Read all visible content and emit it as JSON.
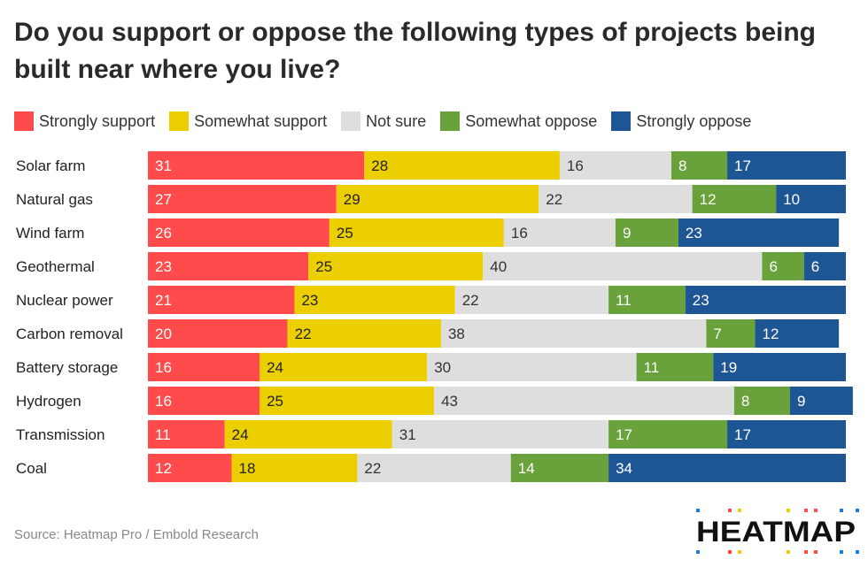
{
  "chart_data": {
    "type": "bar",
    "orientation": "horizontal",
    "stacked": true,
    "title": "Do you support or oppose the following types of projects being built near where you live?",
    "categories": [
      "Solar farm",
      "Natural gas",
      "Wind farm",
      "Geothermal",
      "Nuclear power",
      "Carbon removal",
      "Battery storage",
      "Hydrogen",
      "Transmission",
      "Coal"
    ],
    "series": [
      {
        "name": "Strongly support",
        "color": "#ff4b4b",
        "text_color": "#ffffff",
        "values": [
          31,
          27,
          26,
          23,
          21,
          20,
          16,
          16,
          11,
          12
        ]
      },
      {
        "name": "Somewhat support",
        "color": "#ebcf00",
        "text_color": "#222222",
        "values": [
          28,
          29,
          25,
          25,
          23,
          22,
          24,
          25,
          24,
          18
        ]
      },
      {
        "name": "Not sure",
        "color": "#dedede",
        "text_color": "#333333",
        "values": [
          16,
          22,
          16,
          40,
          22,
          38,
          30,
          43,
          31,
          22
        ]
      },
      {
        "name": "Somewhat oppose",
        "color": "#69a23a",
        "text_color": "#ffffff",
        "values": [
          8,
          12,
          9,
          6,
          11,
          7,
          11,
          8,
          17,
          14
        ]
      },
      {
        "name": "Strongly oppose",
        "color": "#1e5594",
        "text_color": "#ffffff",
        "values": [
          17,
          10,
          23,
          6,
          23,
          12,
          19,
          9,
          17,
          34
        ]
      }
    ],
    "legend_position": "top-left",
    "grid": false
  },
  "source": "Source: Heatmap Pro / Embold Research",
  "logo": "HEATMAP"
}
